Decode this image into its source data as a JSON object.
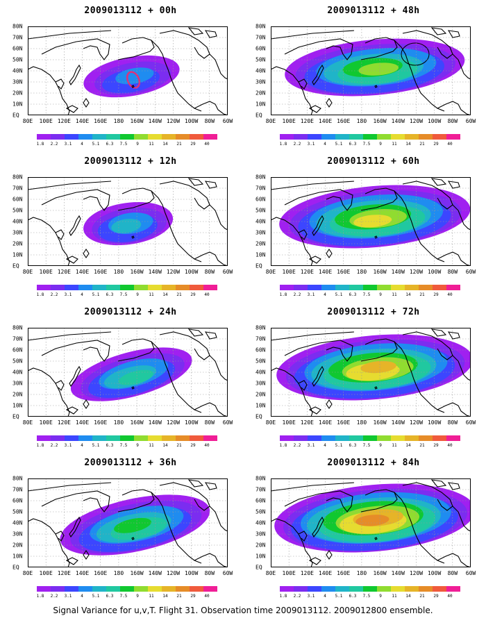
{
  "footer": "Signal Variance for u,v,T. Flight 31. Observation time 2009013112. 2009012800 ensemble.",
  "lon_labels": [
    "80E",
    "100E",
    "120E",
    "140E",
    "160E",
    "180",
    "160W",
    "140W",
    "120W",
    "100W",
    "80W",
    "60W"
  ],
  "lat_labels": [
    "80N",
    "70N",
    "60N",
    "50N",
    "40N",
    "30N",
    "20N",
    "10N",
    "EQ"
  ],
  "colorbar": {
    "labels": [
      "1.8",
      "2.2",
      "3.1",
      "4",
      "5.1",
      "6.3",
      "7.5",
      "9",
      "11",
      "14",
      "21",
      "29",
      "40"
    ],
    "colors": [
      "#a020f0",
      "#7b2df0",
      "#3c46ff",
      "#1f8cf0",
      "#20b4c8",
      "#20c8a0",
      "#10c830",
      "#90dc30",
      "#e6dc30",
      "#e6b428",
      "#e68c28",
      "#f05a3c",
      "#f01e96"
    ]
  },
  "panels": [
    {
      "title": "2009013112 + 00h",
      "col": 0,
      "row": 0,
      "level": 0
    },
    {
      "title": "2009013112 + 48h",
      "col": 1,
      "row": 0,
      "level": 4
    },
    {
      "title": "2009013112 + 12h",
      "col": 0,
      "row": 1,
      "level": 1
    },
    {
      "title": "2009013112 + 60h",
      "col": 1,
      "row": 1,
      "level": 5
    },
    {
      "title": "2009013112 + 24h",
      "col": 0,
      "row": 2,
      "level": 2
    },
    {
      "title": "2009013112 + 72h",
      "col": 1,
      "row": 2,
      "level": 6
    },
    {
      "title": "2009013112 + 36h",
      "col": 0,
      "row": 3,
      "level": 3
    },
    {
      "title": "2009013112 + 84h",
      "col": 1,
      "row": 3,
      "level": 7
    }
  ]
}
